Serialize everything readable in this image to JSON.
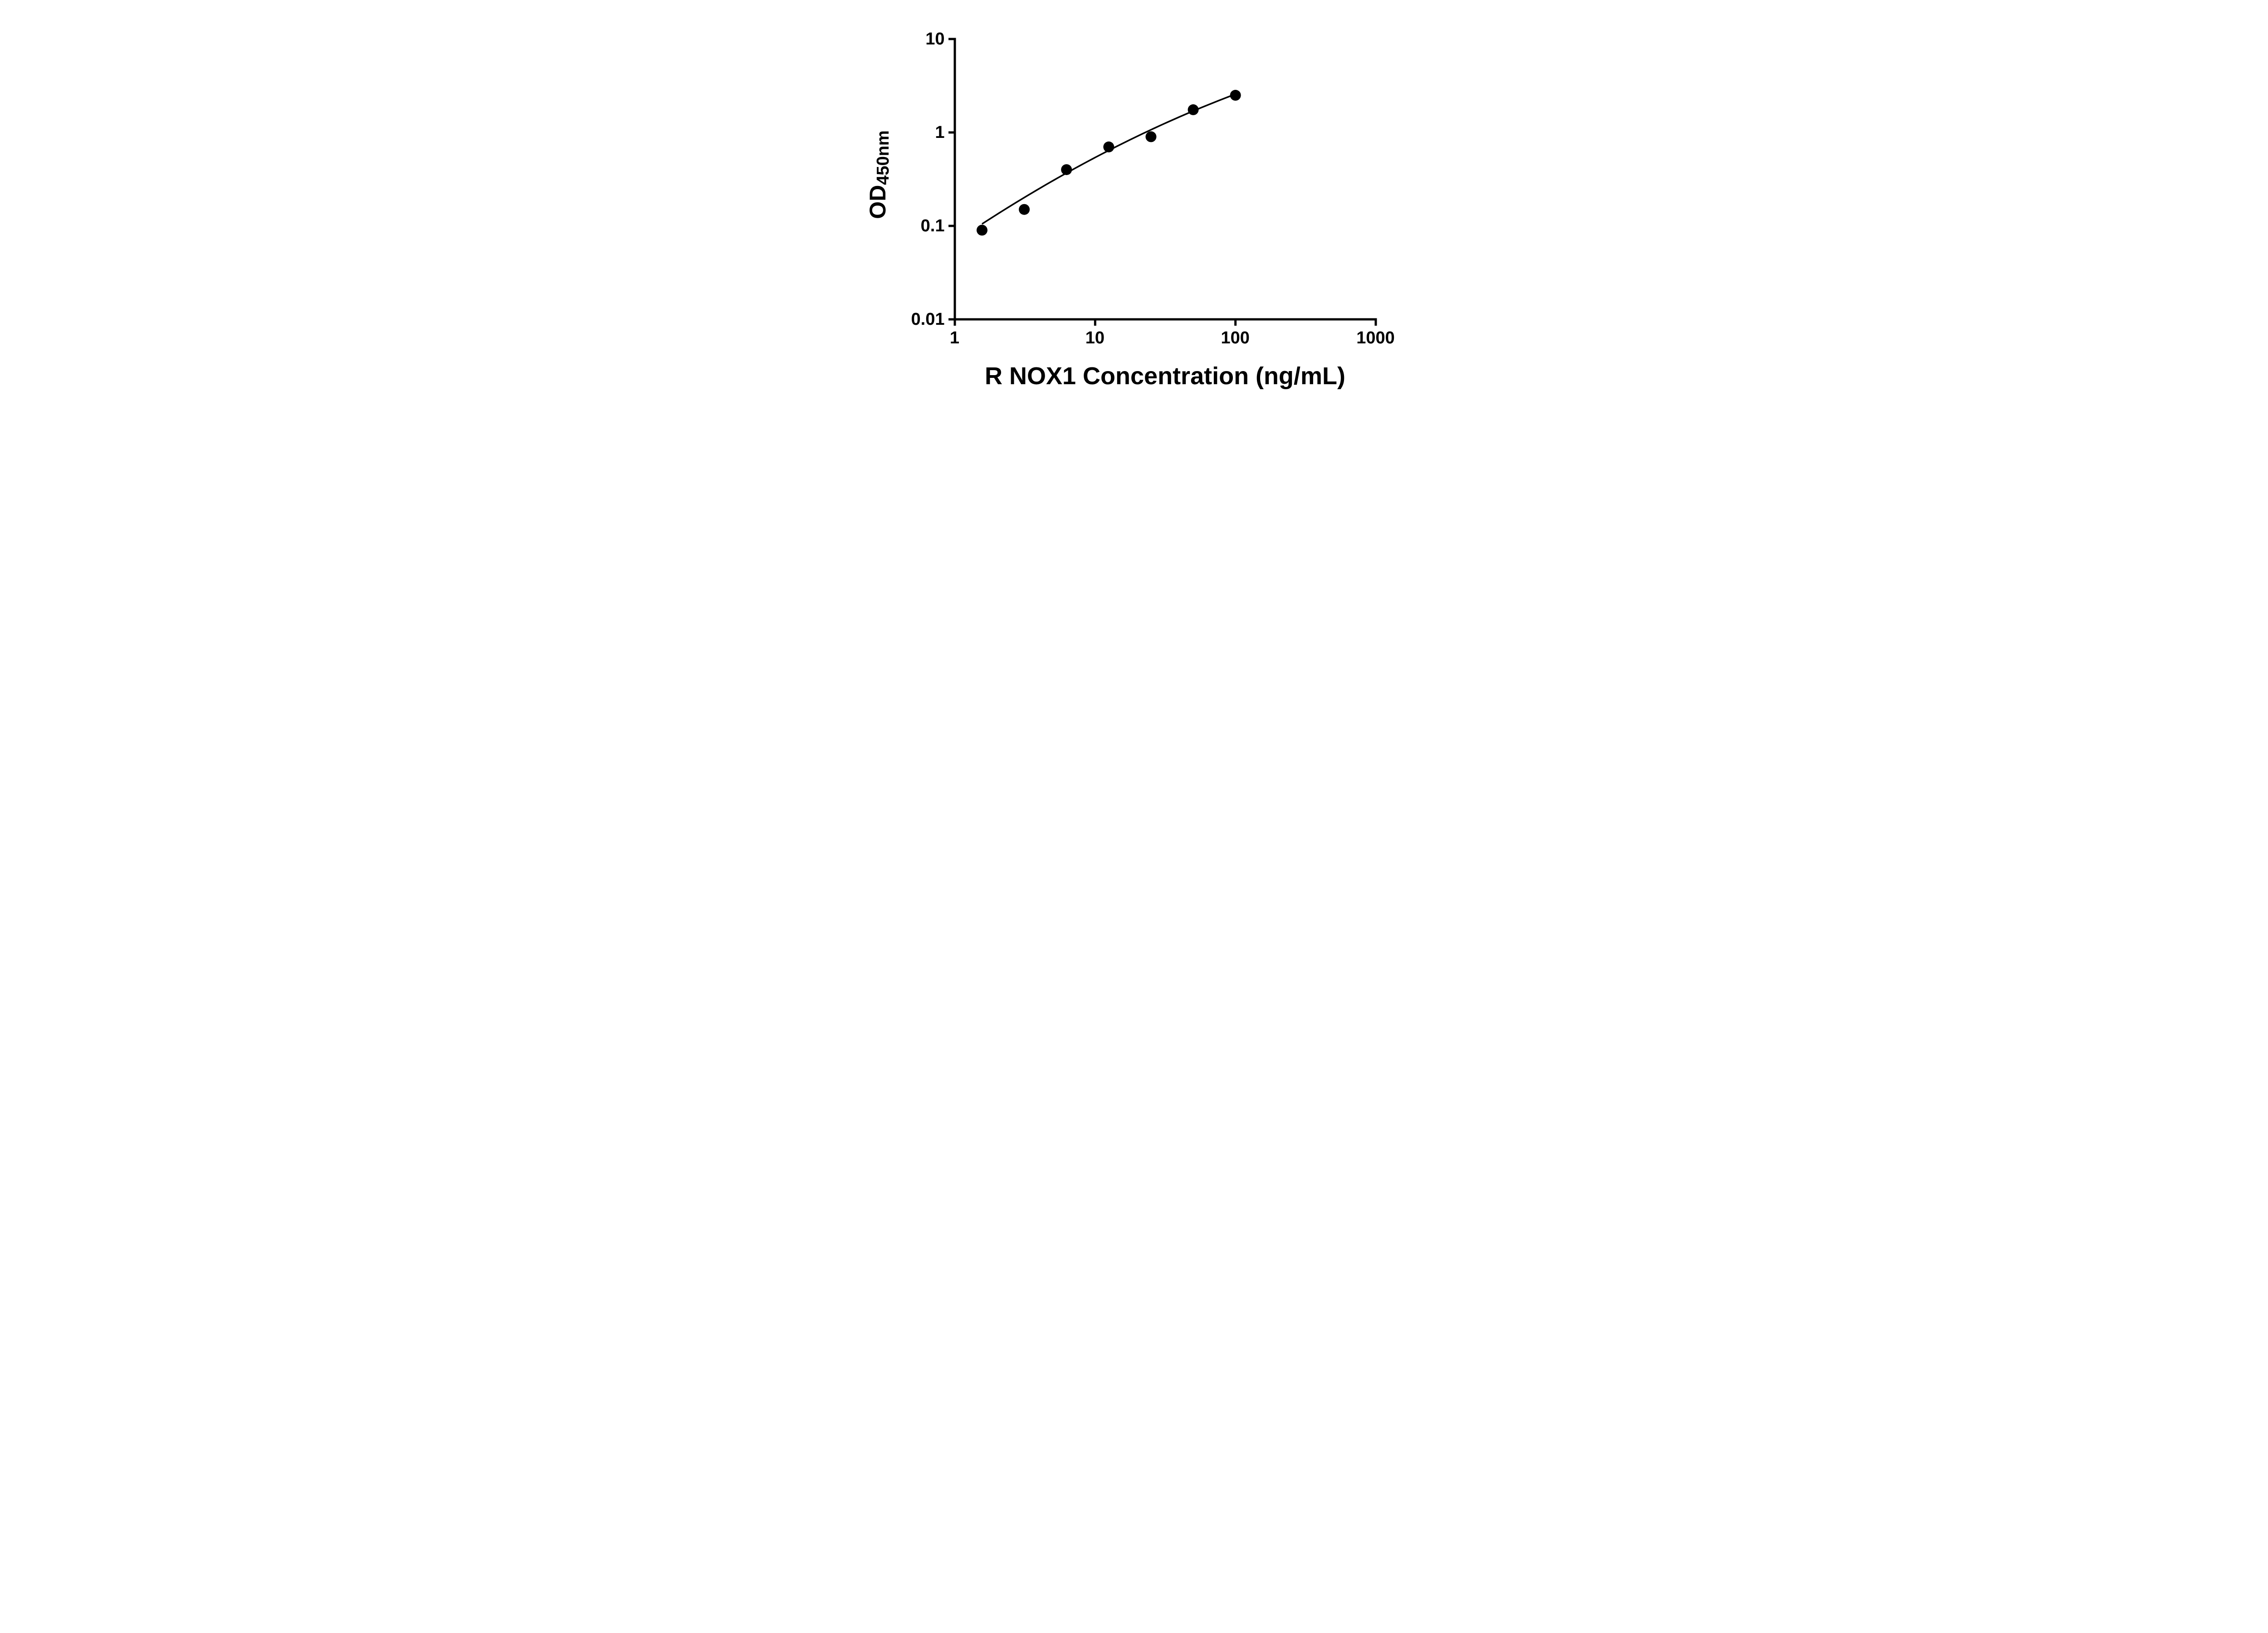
{
  "chart_data": {
    "type": "scatter",
    "title": "",
    "xlabel": "R NOX1 Concentration (ng/mL)",
    "ylabel_main": "OD",
    "ylabel_sub": "450nm",
    "x_scale": "log",
    "y_scale": "log",
    "xlim": [
      1,
      1000
    ],
    "ylim": [
      0.01,
      10
    ],
    "x_ticks": [
      1,
      10,
      100,
      1000
    ],
    "x_tick_labels": [
      "1",
      "10",
      "100",
      "1000"
    ],
    "y_ticks": [
      0.01,
      0.1,
      1,
      10
    ],
    "y_tick_labels": [
      "0.01",
      "0.1",
      "1",
      "10"
    ],
    "points": [
      {
        "x": 1.5625,
        "y": 0.09
      },
      {
        "x": 3.125,
        "y": 0.15
      },
      {
        "x": 6.25,
        "y": 0.4
      },
      {
        "x": 12.5,
        "y": 0.7
      },
      {
        "x": 25,
        "y": 0.9
      },
      {
        "x": 50,
        "y": 1.75
      },
      {
        "x": 100,
        "y": 2.5
      }
    ],
    "fit_curve": {
      "type": "quadratic_loglog",
      "coefficients": {
        "a": -1.172,
        "b": 1.017,
        "c": -0.113
      },
      "x_start": 1.5625,
      "x_end": 100
    },
    "grid": "off",
    "legend": "none",
    "marker_color": "#000000",
    "line_color": "#000000",
    "axis_color": "#000000",
    "background": "#ffffff"
  }
}
